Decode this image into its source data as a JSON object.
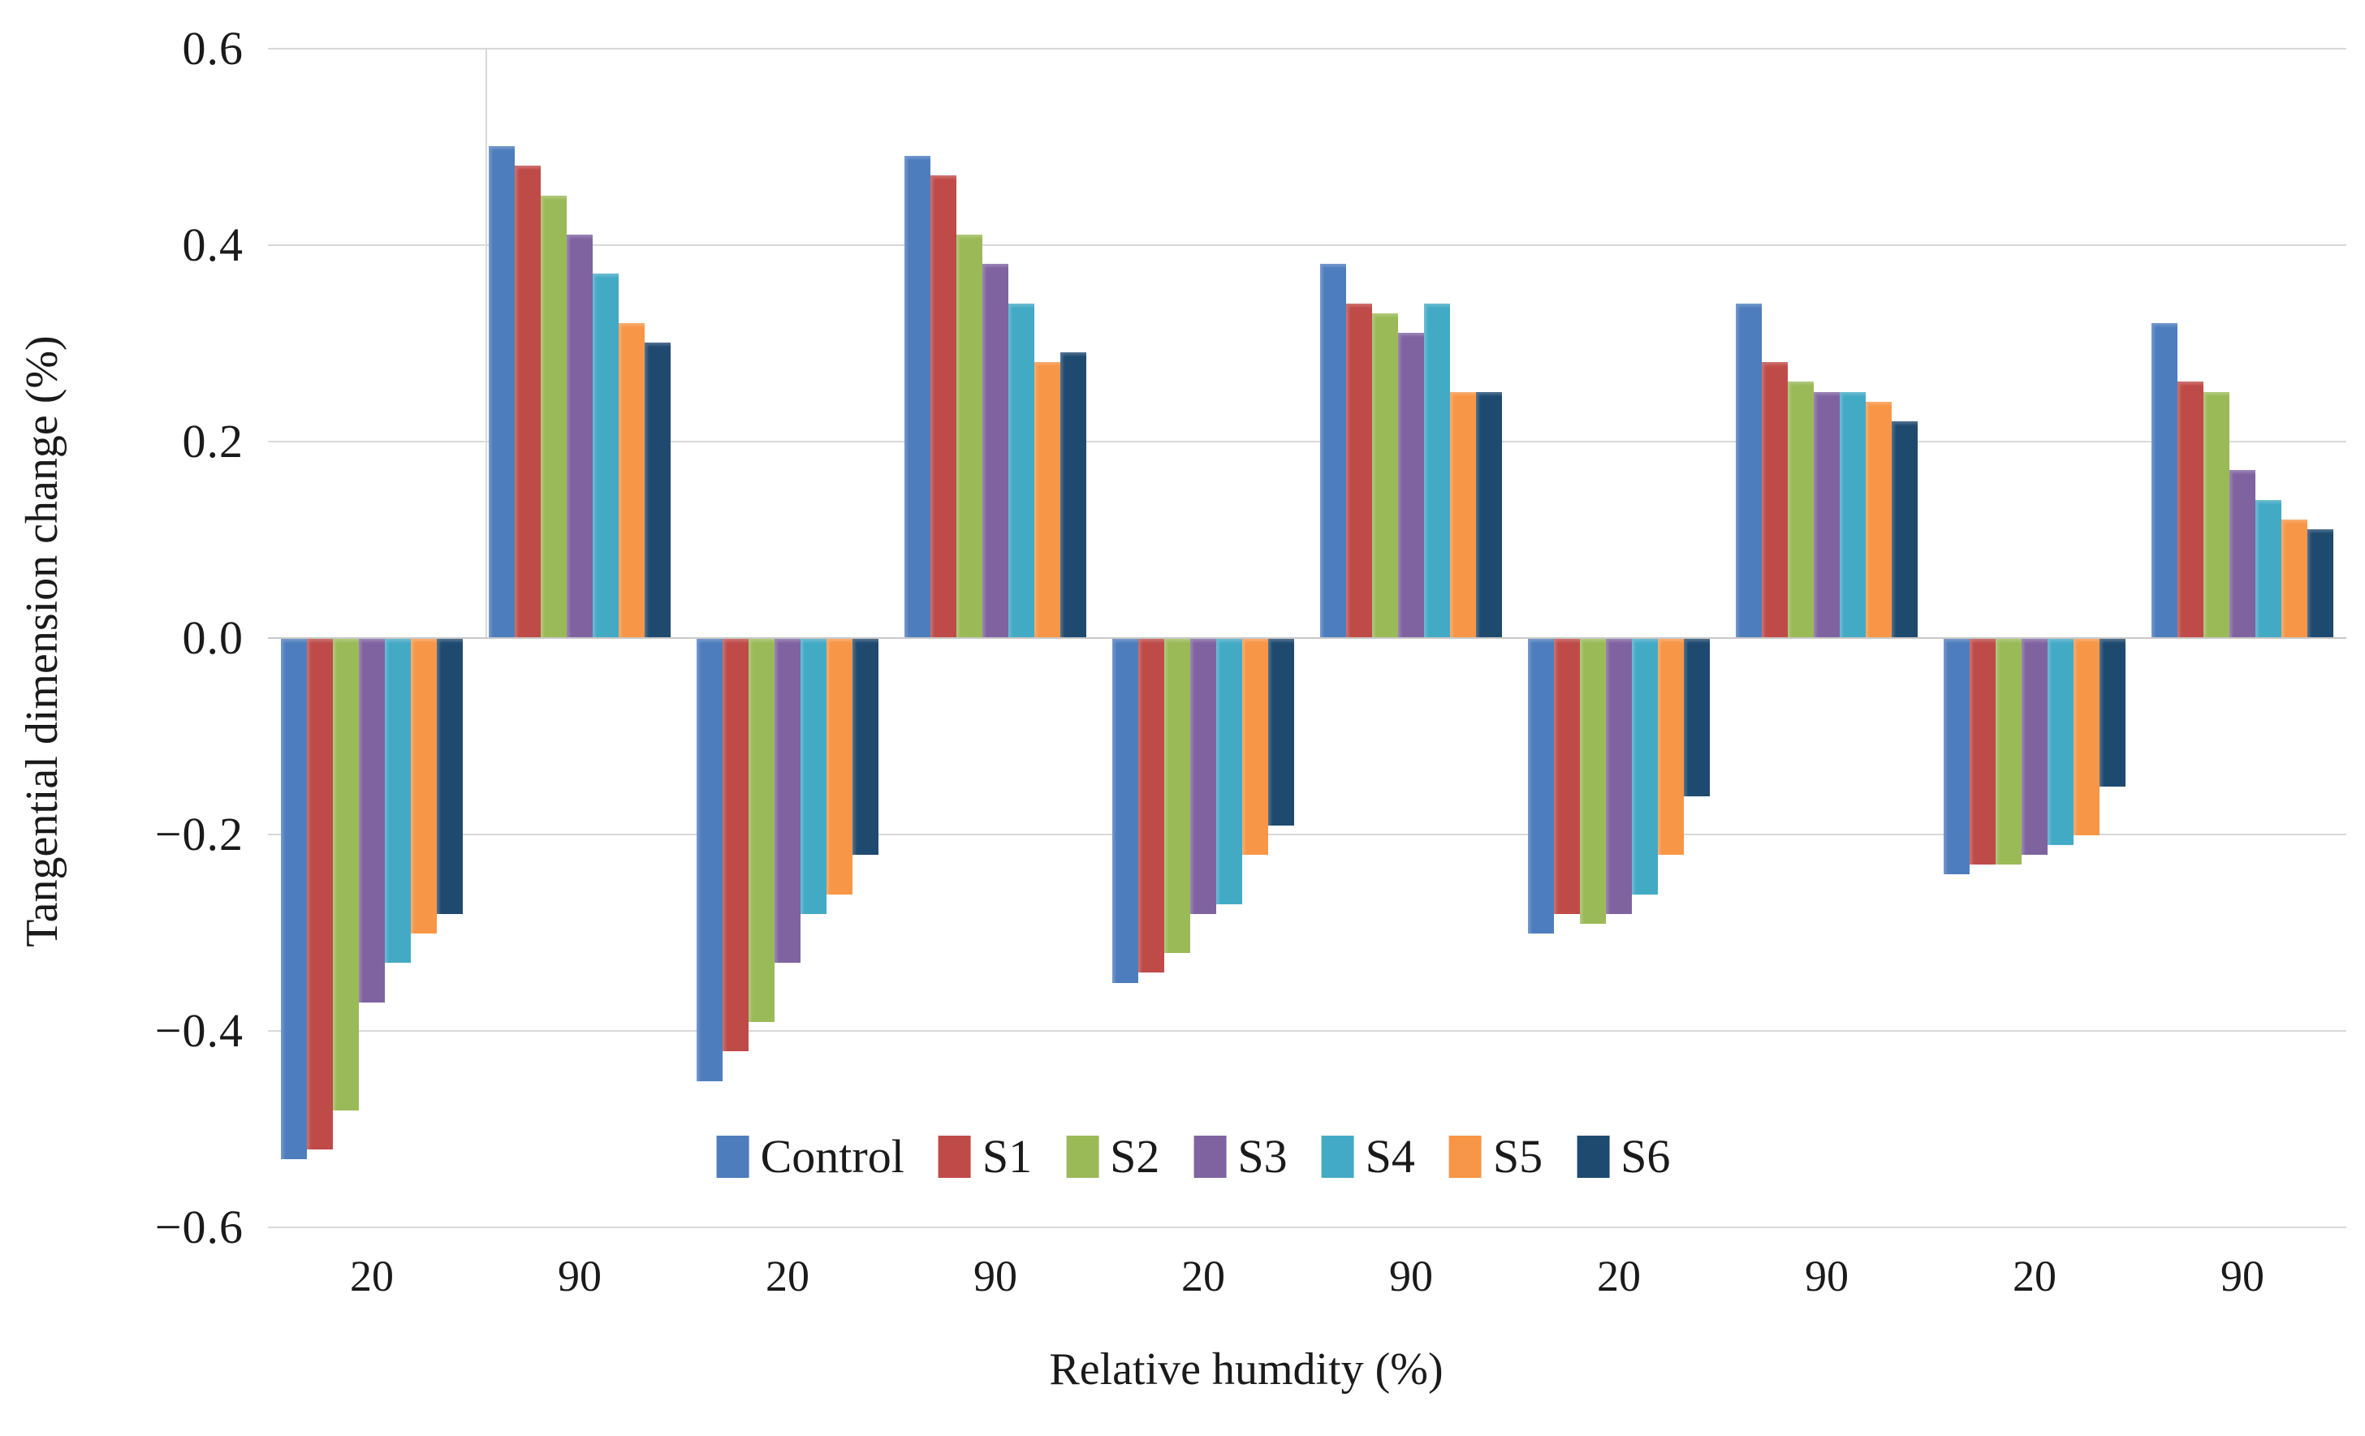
{
  "chart_data": {
    "type": "bar",
    "title": "",
    "xlabel": "Relative humdity (%)",
    "ylabel": "Tangential dimension change (%)",
    "categories": [
      "20",
      "90",
      "20",
      "90",
      "20",
      "90",
      "20",
      "90",
      "20",
      "90"
    ],
    "ylim": [
      -0.6,
      0.6
    ],
    "grid": true,
    "legend_position": "bottom-center",
    "yticks": [
      {
        "label": "0.6",
        "value": 0.6
      },
      {
        "label": "0.4",
        "value": 0.4
      },
      {
        "label": "0.2",
        "value": 0.2
      },
      {
        "label": "0.0",
        "value": 0.0
      },
      {
        "label": "−0.2",
        "value": -0.2
      },
      {
        "label": "−0.4",
        "value": -0.4
      },
      {
        "label": "−0.6",
        "value": -0.6
      }
    ],
    "series": [
      {
        "name": "Control",
        "color": "#4e7dbe",
        "values": [
          -0.53,
          0.5,
          -0.45,
          0.49,
          -0.35,
          0.38,
          -0.3,
          0.34,
          -0.24,
          0.32
        ]
      },
      {
        "name": "S1",
        "color": "#bf4b48",
        "values": [
          -0.52,
          0.48,
          -0.42,
          0.47,
          -0.34,
          0.34,
          -0.28,
          0.28,
          -0.23,
          0.26
        ]
      },
      {
        "name": "S2",
        "color": "#9aba58",
        "values": [
          -0.48,
          0.45,
          -0.39,
          0.41,
          -0.32,
          0.33,
          -0.29,
          0.26,
          -0.23,
          0.25
        ]
      },
      {
        "name": "S3",
        "color": "#7f63a1",
        "values": [
          -0.37,
          0.41,
          -0.33,
          0.38,
          -0.28,
          0.31,
          -0.28,
          0.25,
          -0.22,
          0.17
        ]
      },
      {
        "name": "S4",
        "color": "#43aac6",
        "values": [
          -0.33,
          0.37,
          -0.28,
          0.34,
          -0.27,
          0.34,
          -0.26,
          0.25,
          -0.21,
          0.14
        ]
      },
      {
        "name": "S5",
        "color": "#f79646",
        "values": [
          -0.3,
          0.32,
          -0.26,
          0.28,
          -0.22,
          0.25,
          -0.22,
          0.24,
          -0.2,
          0.12
        ]
      },
      {
        "name": "S6",
        "color": "#1f4a70",
        "values": [
          -0.28,
          0.3,
          -0.22,
          0.29,
          -0.19,
          0.25,
          -0.16,
          0.22,
          -0.15,
          0.11
        ]
      }
    ]
  }
}
